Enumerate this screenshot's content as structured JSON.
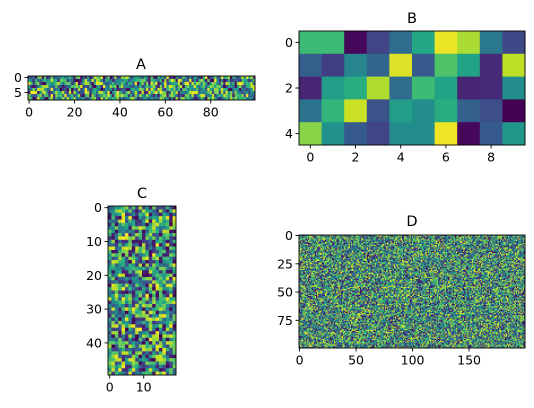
{
  "chart_data": [
    {
      "type": "heatmap",
      "title": "A",
      "rows": 8,
      "cols": 100,
      "seed": 11,
      "xticks": [
        0,
        20,
        40,
        60,
        80
      ],
      "yticks": [
        0,
        5
      ]
    },
    {
      "type": "heatmap",
      "title": "B",
      "rows": 5,
      "cols": 10,
      "values": [
        [
          0.68,
          0.68,
          0.02,
          0.2,
          0.35,
          0.6,
          0.97,
          0.87,
          0.4,
          0.22
        ],
        [
          0.3,
          0.18,
          0.45,
          0.32,
          0.95,
          0.28,
          0.72,
          0.58,
          0.12,
          0.9
        ],
        [
          0.1,
          0.55,
          0.62,
          0.88,
          0.35,
          0.68,
          0.58,
          0.1,
          0.12,
          0.48
        ],
        [
          0.38,
          0.65,
          0.92,
          0.25,
          0.55,
          0.48,
          0.62,
          0.3,
          0.24,
          0.0
        ],
        [
          0.82,
          0.5,
          0.28,
          0.2,
          0.48,
          0.48,
          0.98,
          0.02,
          0.28,
          0.52
        ]
      ],
      "xticks": [
        0,
        2,
        4,
        6,
        8
      ],
      "yticks": [
        0,
        2,
        4
      ]
    },
    {
      "type": "heatmap",
      "title": "C",
      "rows": 50,
      "cols": 20,
      "seed": 23,
      "xticks": [
        0,
        10
      ],
      "yticks": [
        0,
        10,
        20,
        30,
        40
      ]
    },
    {
      "type": "heatmap",
      "title": "D",
      "rows": 100,
      "cols": 200,
      "seed": 37,
      "xticks": [
        0,
        50,
        100,
        150
      ],
      "yticks": [
        0,
        25,
        50,
        75
      ]
    }
  ]
}
